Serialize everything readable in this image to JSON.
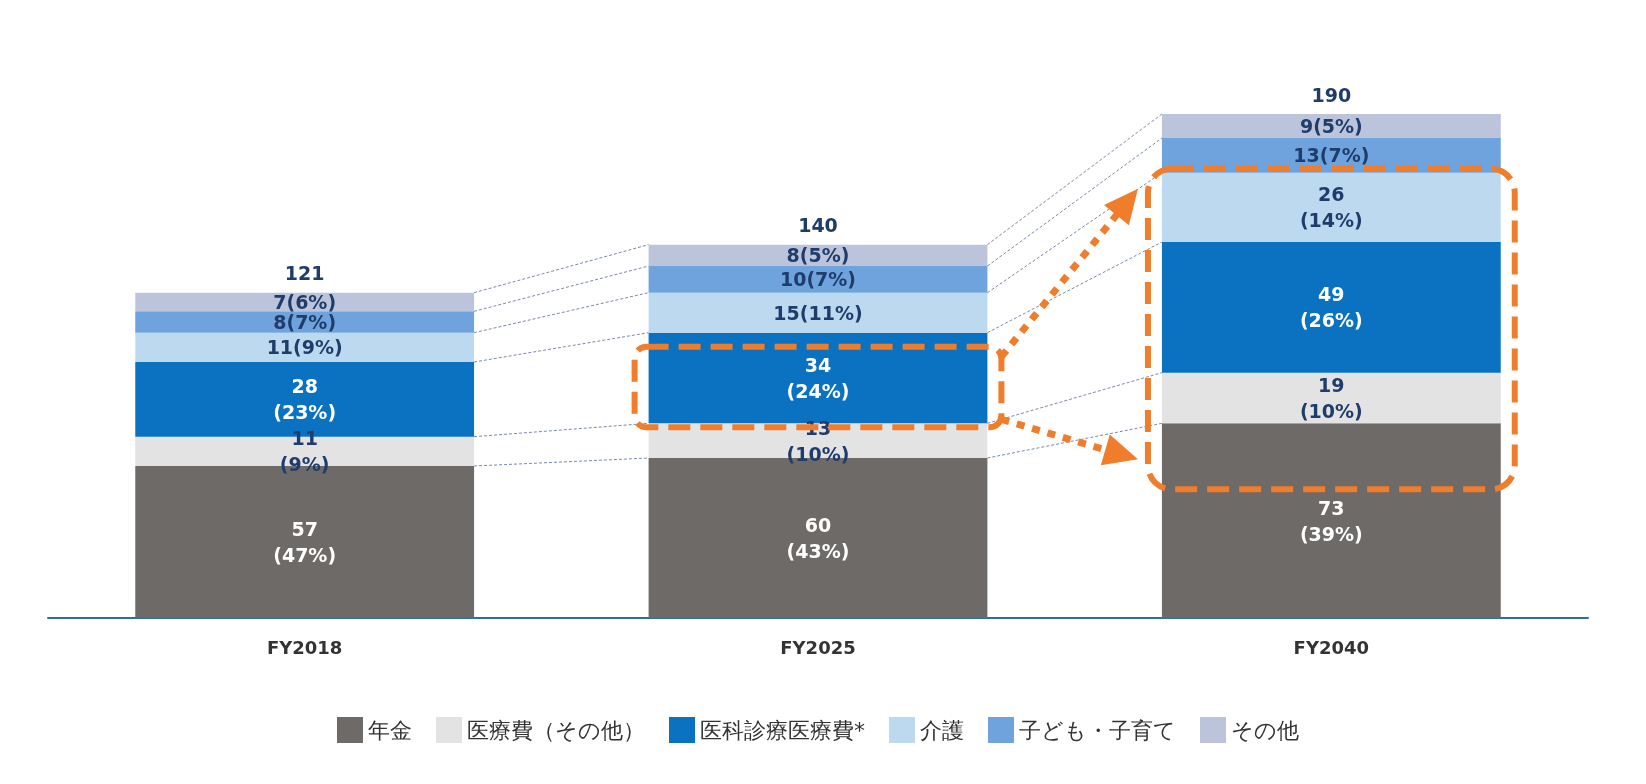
{
  "chart_data": {
    "type": "bar",
    "stacked": true,
    "categories": [
      "FY2018",
      "FY2025",
      "FY2040"
    ],
    "series": [
      {
        "name": "年金",
        "color": "#6e6a68",
        "values": [
          57,
          60,
          73
        ],
        "value_labels": [
          "57 (47%)",
          "60 (43%)",
          "73 (39%)"
        ]
      },
      {
        "name": "医療費（その他）",
        "color": "#e4e3e4",
        "values": [
          11,
          13,
          19
        ],
        "value_labels": [
          "11 (9%)",
          "13 (10%)",
          "19 (10%)"
        ]
      },
      {
        "name": "医科診療医療費*",
        "color": "#0a72c0",
        "values": [
          28,
          34,
          49
        ],
        "value_labels": [
          "28 (23%)",
          "34 (24%)",
          "49 (26%)"
        ]
      },
      {
        "name": "介護",
        "color": "#bcd9f0",
        "values": [
          11,
          15,
          26
        ],
        "value_labels": [
          "11(9%)",
          "15(11%)",
          "26 (14%)"
        ]
      },
      {
        "name": "子ども・子育て",
        "color": "#6ea3dd",
        "values": [
          8,
          10,
          13
        ],
        "value_labels": [
          "8(7%)",
          "10(7%)",
          "13(7%)"
        ]
      },
      {
        "name": "その他",
        "color": "#bcc4dc",
        "values": [
          7,
          8,
          9
        ],
        "value_labels": [
          "7(6%)",
          "8(5%)",
          "9(5%)"
        ]
      }
    ],
    "totals": [
      "121",
      "140",
      "190"
    ],
    "legend": "bottom"
  }
}
